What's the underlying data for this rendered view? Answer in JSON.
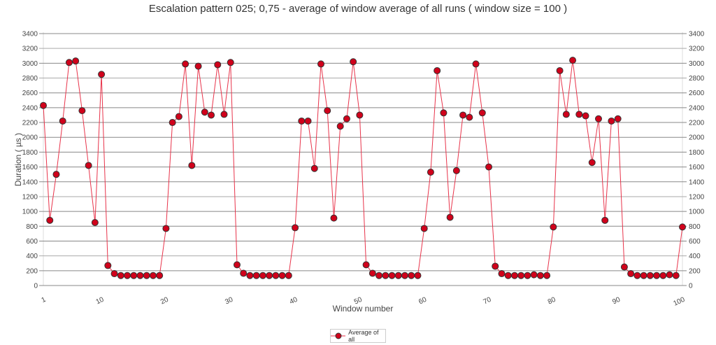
{
  "chart_data": {
    "type": "line",
    "title": "Escalation pattern 025; 0,75 - average of window average of all runs ( window size = 100 )",
    "xlabel": "Window number",
    "ylabel": "Duration ( µs )",
    "xlim": [
      1,
      100
    ],
    "ylim": [
      0,
      3400
    ],
    "yticks": [
      0,
      200,
      400,
      600,
      800,
      1000,
      1200,
      1400,
      1600,
      1800,
      2000,
      2200,
      2400,
      2600,
      2800,
      3000,
      3200,
      3400
    ],
    "xticks": [
      1,
      10,
      20,
      30,
      40,
      50,
      60,
      70,
      80,
      90,
      100
    ],
    "grid": true,
    "legend_position": "bottom-center",
    "colors": {
      "series": "#d0021b",
      "line": "#e8334a",
      "marker_edge": "#333333",
      "grid": "#888888"
    },
    "series": [
      {
        "name": "Average of all",
        "x": [
          1,
          2,
          3,
          4,
          5,
          6,
          7,
          8,
          9,
          10,
          11,
          12,
          13,
          14,
          15,
          16,
          17,
          18,
          19,
          20,
          21,
          22,
          23,
          24,
          25,
          26,
          27,
          28,
          29,
          30,
          31,
          32,
          33,
          34,
          35,
          36,
          37,
          38,
          39,
          40,
          41,
          42,
          43,
          44,
          45,
          46,
          47,
          48,
          49,
          50,
          51,
          52,
          53,
          54,
          55,
          56,
          57,
          58,
          59,
          60,
          61,
          62,
          63,
          64,
          65,
          66,
          67,
          68,
          69,
          70,
          71,
          72,
          73,
          74,
          75,
          76,
          77,
          78,
          79,
          80,
          81,
          82,
          83,
          84,
          85,
          86,
          87,
          88,
          89,
          90,
          91,
          92,
          93,
          94,
          95,
          96,
          97,
          98,
          99,
          100
        ],
        "values": [
          2430,
          880,
          1500,
          2220,
          3010,
          3030,
          2360,
          1620,
          850,
          2850,
          270,
          160,
          135,
          135,
          135,
          135,
          135,
          135,
          135,
          770,
          2200,
          2280,
          2990,
          1620,
          2960,
          2340,
          2300,
          2980,
          2310,
          3010,
          280,
          165,
          135,
          135,
          135,
          135,
          135,
          135,
          135,
          780,
          2220,
          2220,
          1580,
          2990,
          2360,
          910,
          2150,
          2250,
          3020,
          2300,
          280,
          165,
          135,
          135,
          135,
          135,
          135,
          135,
          135,
          770,
          1530,
          2900,
          2330,
          920,
          1550,
          2300,
          2270,
          2990,
          2330,
          1600,
          260,
          160,
          135,
          135,
          135,
          135,
          145,
          135,
          135,
          790,
          2900,
          2310,
          3040,
          2310,
          2290,
          1660,
          2250,
          880,
          2220,
          2250,
          250,
          160,
          135,
          135,
          135,
          135,
          135,
          145,
          135,
          790
        ]
      }
    ]
  }
}
